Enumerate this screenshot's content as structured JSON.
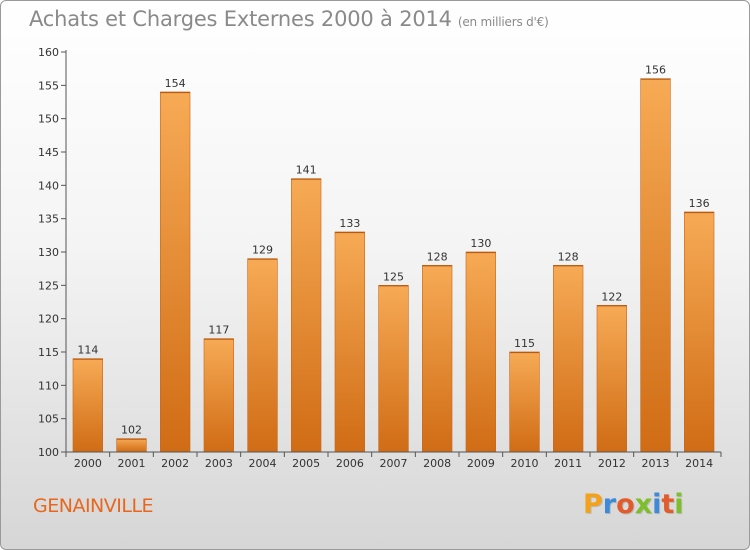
{
  "chart_data": {
    "type": "bar",
    "title": "Achats et Charges Externes 2000 à 2014",
    "subtitle": "(en milliers d'€)",
    "categories": [
      "2000",
      "2001",
      "2002",
      "2003",
      "2004",
      "2005",
      "2006",
      "2007",
      "2008",
      "2009",
      "2010",
      "2011",
      "2012",
      "2013",
      "2014"
    ],
    "values": [
      114,
      102,
      154,
      117,
      129,
      141,
      133,
      125,
      128,
      130,
      115,
      128,
      122,
      156,
      136
    ],
    "ylim": [
      100,
      160
    ],
    "yticks": [
      100,
      105,
      110,
      115,
      120,
      125,
      130,
      135,
      140,
      145,
      150,
      155,
      160
    ],
    "xlabel": "",
    "ylabel": "",
    "grid": false
  },
  "place": "GENAINVILLE",
  "brand": {
    "letters": [
      "P",
      "r",
      "o",
      "x",
      "i",
      "t",
      "i"
    ],
    "colors": [
      "#f3a21b",
      "#3c8ad8",
      "#e25b2a",
      "#7cbf2a",
      "#3c8ad8",
      "#e25b2a",
      "#7cbf2a"
    ]
  },
  "colors": {
    "bar_light": "#f6a54c",
    "bar_dark": "#d4731d",
    "axis": "#555555",
    "label": "#333333"
  }
}
